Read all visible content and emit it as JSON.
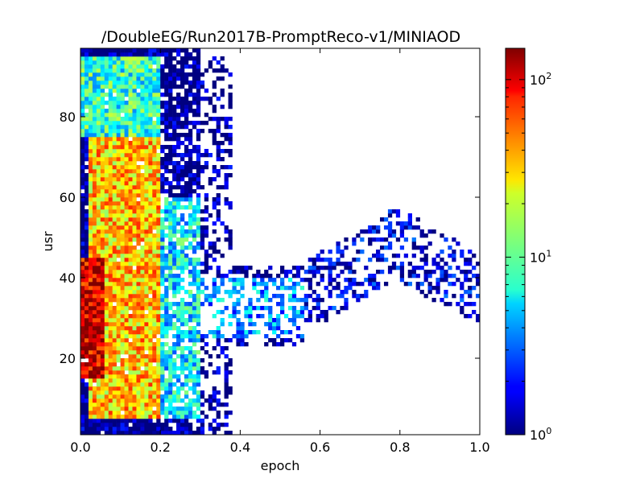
{
  "chart_data": {
    "type": "heatmap",
    "title": "/DoubleEG/Run2017B-PromptReco-v1/MINIAOD",
    "xlabel": "epoch",
    "ylabel": "usr",
    "xlim": [
      0.0,
      1.0
    ],
    "ylim": [
      1,
      97
    ],
    "x_ticks": [
      0.0,
      0.2,
      0.4,
      0.6,
      0.8,
      1.0
    ],
    "x_tick_labels": [
      "0.0",
      "0.2",
      "0.4",
      "0.6",
      "0.8",
      "1.0"
    ],
    "y_ticks": [
      20,
      40,
      60,
      80
    ],
    "y_tick_labels": [
      "20",
      "40",
      "60",
      "80"
    ],
    "colorbar": {
      "scale": "log",
      "min": 1,
      "max": 150,
      "colormap": "jet",
      "ticks": [
        1,
        10,
        100
      ],
      "tick_base": "10",
      "tick_exponents": [
        "0",
        "1",
        "2"
      ]
    },
    "bins": {
      "x": 100,
      "y": 96
    },
    "density_regions": [
      {
        "x": [
          0.0,
          0.06
        ],
        "y": [
          15,
          45
        ],
        "approx_count": 100
      },
      {
        "x": [
          0.02,
          0.2
        ],
        "y": [
          5,
          75
        ],
        "approx_count": 30
      },
      {
        "x": [
          0.2,
          0.3
        ],
        "y": [
          5,
          60
        ],
        "approx_count": 6
      },
      {
        "x": [
          0.0,
          0.2
        ],
        "y": [
          75,
          95
        ],
        "approx_count": 8
      },
      {
        "x": [
          0.3,
          0.56
        ],
        "y": [
          25,
          40
        ],
        "approx_count": 4
      },
      {
        "x": [
          0.55,
          1.0
        ],
        "y": [
          25,
          62
        ],
        "approx_count": 1.5
      }
    ],
    "grid": false
  }
}
